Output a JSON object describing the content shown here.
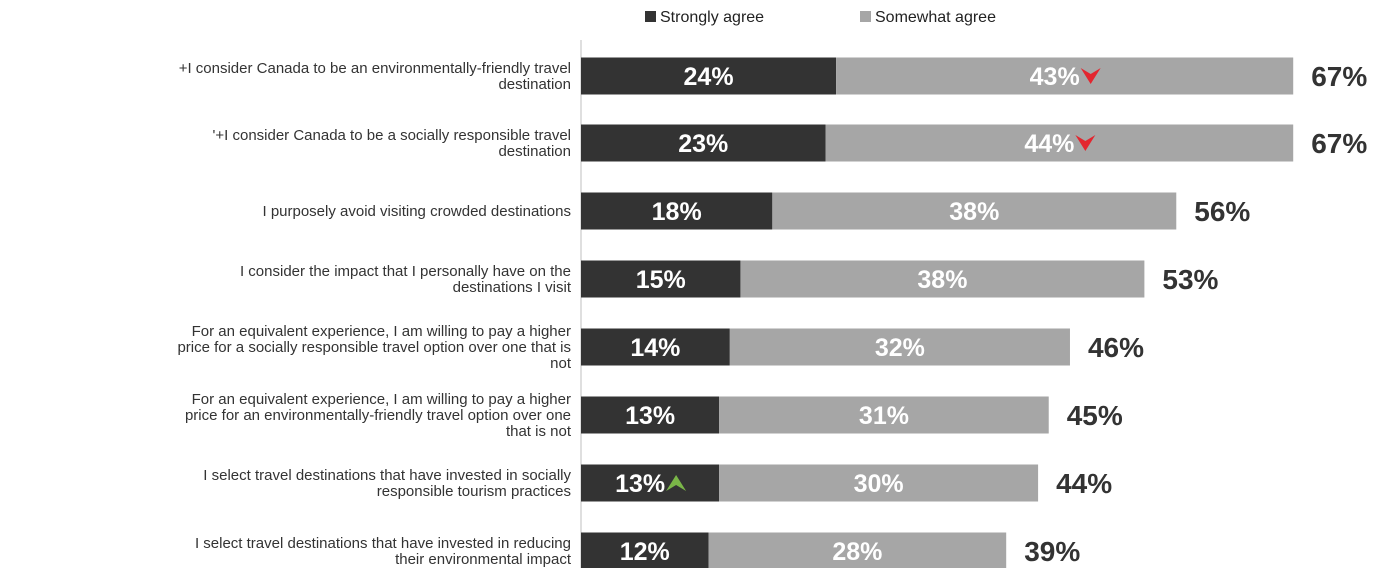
{
  "chart_data": {
    "type": "bar",
    "orientation": "horizontal",
    "stacked": true,
    "legend_position": "top-right",
    "grid": false,
    "xlim": [
      0,
      100
    ],
    "categories": [
      [
        "+I consider Canada to be an environmentally-friendly travel",
        "destination"
      ],
      [
        "'+I consider Canada to be a socially responsible travel",
        "destination"
      ],
      [
        "I purposely avoid visiting crowded destinations"
      ],
      [
        "I consider the impact that I personally have  on the",
        "destinations I visit"
      ],
      [
        "For an equivalent experience, I am willing to pay a higher",
        "price for a socially responsible travel option over one that is",
        "not"
      ],
      [
        "For an equivalent experience, I am willing to pay a higher",
        "price for an environmentally-friendly travel option over one",
        "that is not"
      ],
      [
        "I select travel destinations that have invested in socially",
        "responsible tourism practices"
      ],
      [
        "I select travel destinations that have invested in reducing",
        "their environmental impact"
      ]
    ],
    "series": [
      {
        "name": "Strongly agree",
        "color": "#333333",
        "values": [
          24,
          23,
          18,
          15,
          14,
          13,
          13,
          12
        ],
        "labels": [
          "24%",
          "23%",
          "18%",
          "15%",
          "14%",
          "13%",
          "13%",
          "12%"
        ]
      },
      {
        "name": "Somewhat agree",
        "color": "#a6a6a6",
        "values": [
          43,
          44,
          38,
          38,
          32,
          31,
          30,
          28
        ],
        "labels": [
          "43%",
          "44%",
          "38%",
          "38%",
          "32%",
          "31%",
          "30%",
          "28%"
        ]
      }
    ],
    "totals": [
      67,
      67,
      56,
      53,
      46,
      45,
      44,
      39
    ],
    "total_labels": [
      "67%",
      "67%",
      "56%",
      "53%",
      "46%",
      "45%",
      "44%",
      "39%"
    ],
    "annotations": [
      {
        "category_index": 0,
        "series_index": 1,
        "icon": "down-arrow-icon",
        "color": "#e3262f"
      },
      {
        "category_index": 1,
        "series_index": 1,
        "icon": "down-arrow-icon",
        "color": "#e3262f"
      },
      {
        "category_index": 6,
        "series_index": 0,
        "icon": "up-arrow-icon",
        "color": "#7ab648"
      }
    ]
  }
}
